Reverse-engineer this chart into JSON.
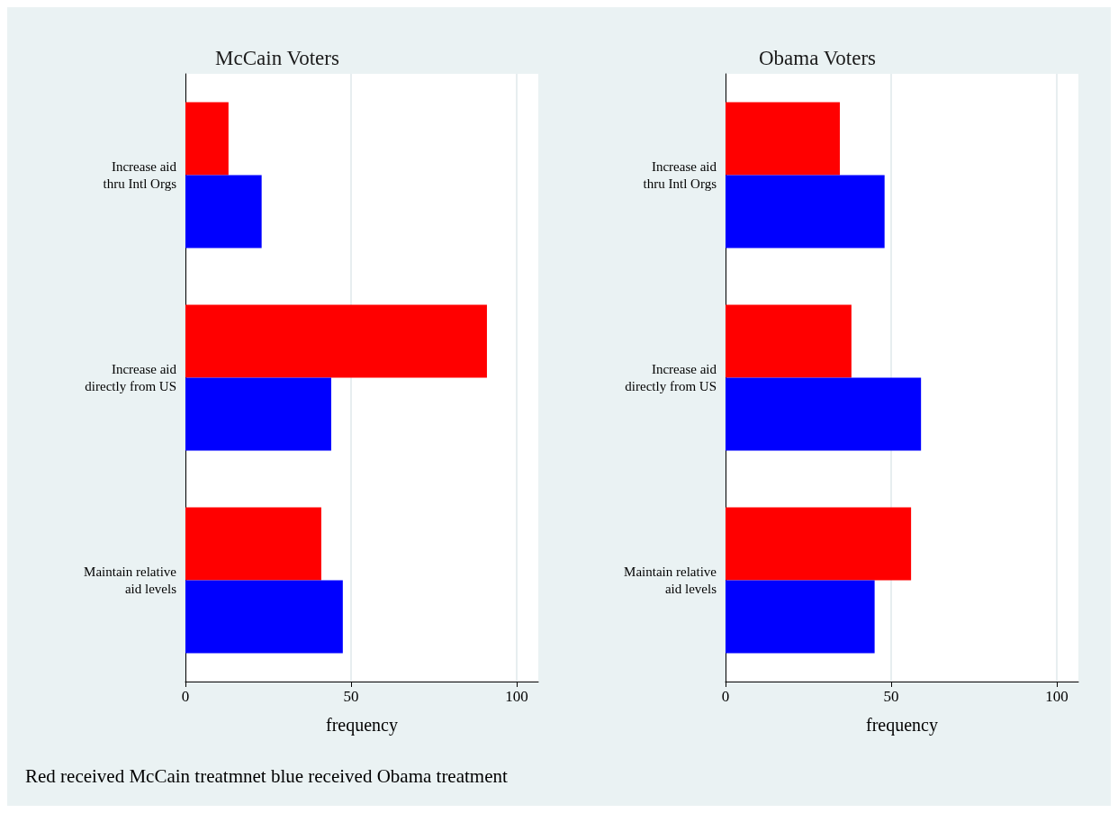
{
  "chart_data": [
    {
      "type": "bar",
      "orientation": "horizontal",
      "title": "McCain Voters",
      "xlabel": "frequency",
      "categories": [
        "Increase aid\nthru Intl Orgs",
        "Increase aid\ndirectly from US",
        "Maintain relative\naid levels"
      ],
      "series": [
        {
          "color": "#ff0000",
          "values": [
            13,
            91,
            41
          ]
        },
        {
          "color": "#0000ff",
          "values": [
            23,
            44,
            47.5
          ]
        }
      ],
      "xlim": [
        0,
        106.5
      ],
      "xticks": [
        0,
        50,
        100
      ],
      "grid": "x",
      "annotations": [
        "Red received McCain treatmnet blue received Obama treatment"
      ]
    },
    {
      "type": "bar",
      "orientation": "horizontal",
      "title": "Obama Voters",
      "xlabel": "frequency",
      "categories": [
        "Increase aid\nthru Intl Orgs",
        "Increase aid\ndirectly from US",
        "Maintain relative\naid levels"
      ],
      "series": [
        {
          "color": "#ff0000",
          "values": [
            34.5,
            38,
            56
          ]
        },
        {
          "color": "#0000ff",
          "values": [
            48,
            59,
            45
          ]
        }
      ],
      "xlim": [
        0,
        106.5
      ],
      "xticks": [
        0,
        50,
        100
      ],
      "grid": "x"
    }
  ]
}
